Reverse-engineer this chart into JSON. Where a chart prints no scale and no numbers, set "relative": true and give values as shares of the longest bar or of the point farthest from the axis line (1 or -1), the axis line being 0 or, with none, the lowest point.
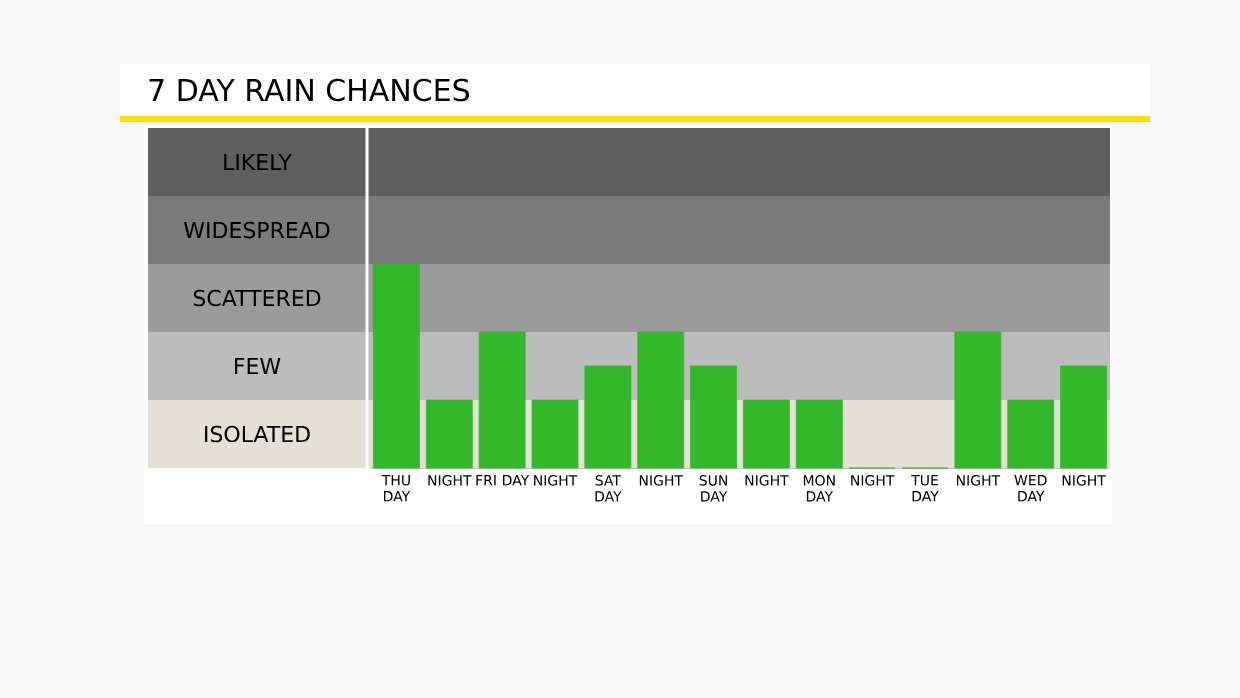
{
  "chart_data": {
    "type": "bar",
    "title": "7 DAY RAIN CHANCES",
    "relative": true,
    "color": "#33b82b",
    "categories": [
      "THU DAY",
      "NIGHT",
      "FRI DAY",
      "NIGHT",
      "SAT DAY",
      "NIGHT",
      "SUN DAY",
      "NIGHT",
      "MON DAY",
      "NIGHT",
      "TUE DAY",
      "NIGHT",
      "WED DAY",
      "NIGHT"
    ],
    "values": [
      1,
      0.333,
      0.667,
      0.333,
      0.5,
      0.667,
      0.5,
      0.333,
      0.333,
      0,
      0,
      0.667,
      0.333,
      0.5
    ],
    "bands": [
      {
        "axis": "y",
        "from": 1.333,
        "to": 1.667,
        "label": "LIKELY",
        "color": "#5f5f5f"
      },
      {
        "axis": "y",
        "from": 1,
        "to": 1.333,
        "label": "WIDESPREAD",
        "color": "#7b7b7b"
      },
      {
        "axis": "y",
        "from": 0.667,
        "to": 1,
        "label": "SCATTERED",
        "color": "#9b9b9b"
      },
      {
        "axis": "y",
        "from": 0.333,
        "to": 0.667,
        "label": "FEW",
        "color": "#bcbcbc"
      },
      {
        "axis": "y",
        "from": 0,
        "to": 0.333,
        "label": "ISOLATED",
        "color": "#e4e0d6"
      }
    ]
  }
}
